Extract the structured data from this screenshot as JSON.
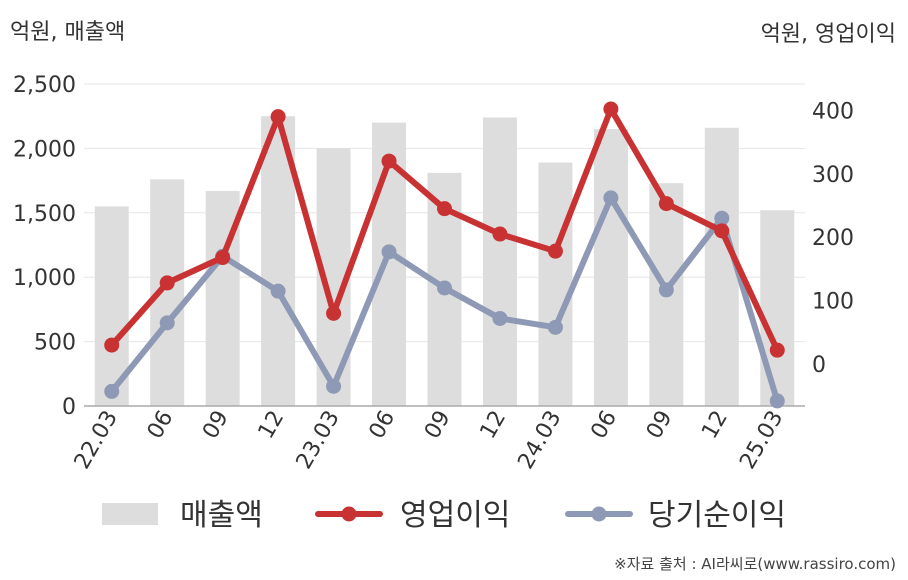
{
  "units": {
    "left": "억원, 매출액",
    "right": "억원, 영업이익"
  },
  "source": "※자료 출처 : AI라씨로(www.rassiro.com)",
  "colors": {
    "sales": "#dddddd",
    "op": "#c83232",
    "net": "#8e9ab5",
    "grid": "#e6e6e6",
    "axis": "#aaaaaa",
    "text": "#333333"
  },
  "chart_data": {
    "type": "bar+line",
    "categories": [
      "22.03",
      "06",
      "09",
      "12",
      "23.03",
      "06",
      "09",
      "12",
      "24.03",
      "06",
      "09",
      "12",
      "25.03"
    ],
    "series": [
      {
        "name": "매출액",
        "type": "bar",
        "axis": "left",
        "values": [
          1550,
          1760,
          1670,
          2250,
          2000,
          2200,
          1810,
          2240,
          1890,
          2150,
          1730,
          2160,
          1520
        ]
      },
      {
        "name": "영업이익",
        "type": "line",
        "axis": "right",
        "values": [
          30,
          128,
          168,
          390,
          80,
          320,
          245,
          205,
          178,
          402,
          253,
          210,
          22
        ]
      },
      {
        "name": "당기순이익",
        "type": "line",
        "axis": "right",
        "values": [
          -43,
          65,
          170,
          115,
          -35,
          177,
          120,
          72,
          58,
          262,
          117,
          230,
          -58
        ]
      }
    ],
    "left_axis": {
      "ticks": [
        "0",
        "500",
        "1,000",
        "1,500",
        "2,000",
        "2,500"
      ],
      "min": 0,
      "max": 2500
    },
    "right_axis": {
      "ticks": [
        "0",
        "100",
        "200",
        "300",
        "400"
      ],
      "min": -66,
      "max": 441.5
    },
    "grid": true,
    "legend": "bottom"
  }
}
